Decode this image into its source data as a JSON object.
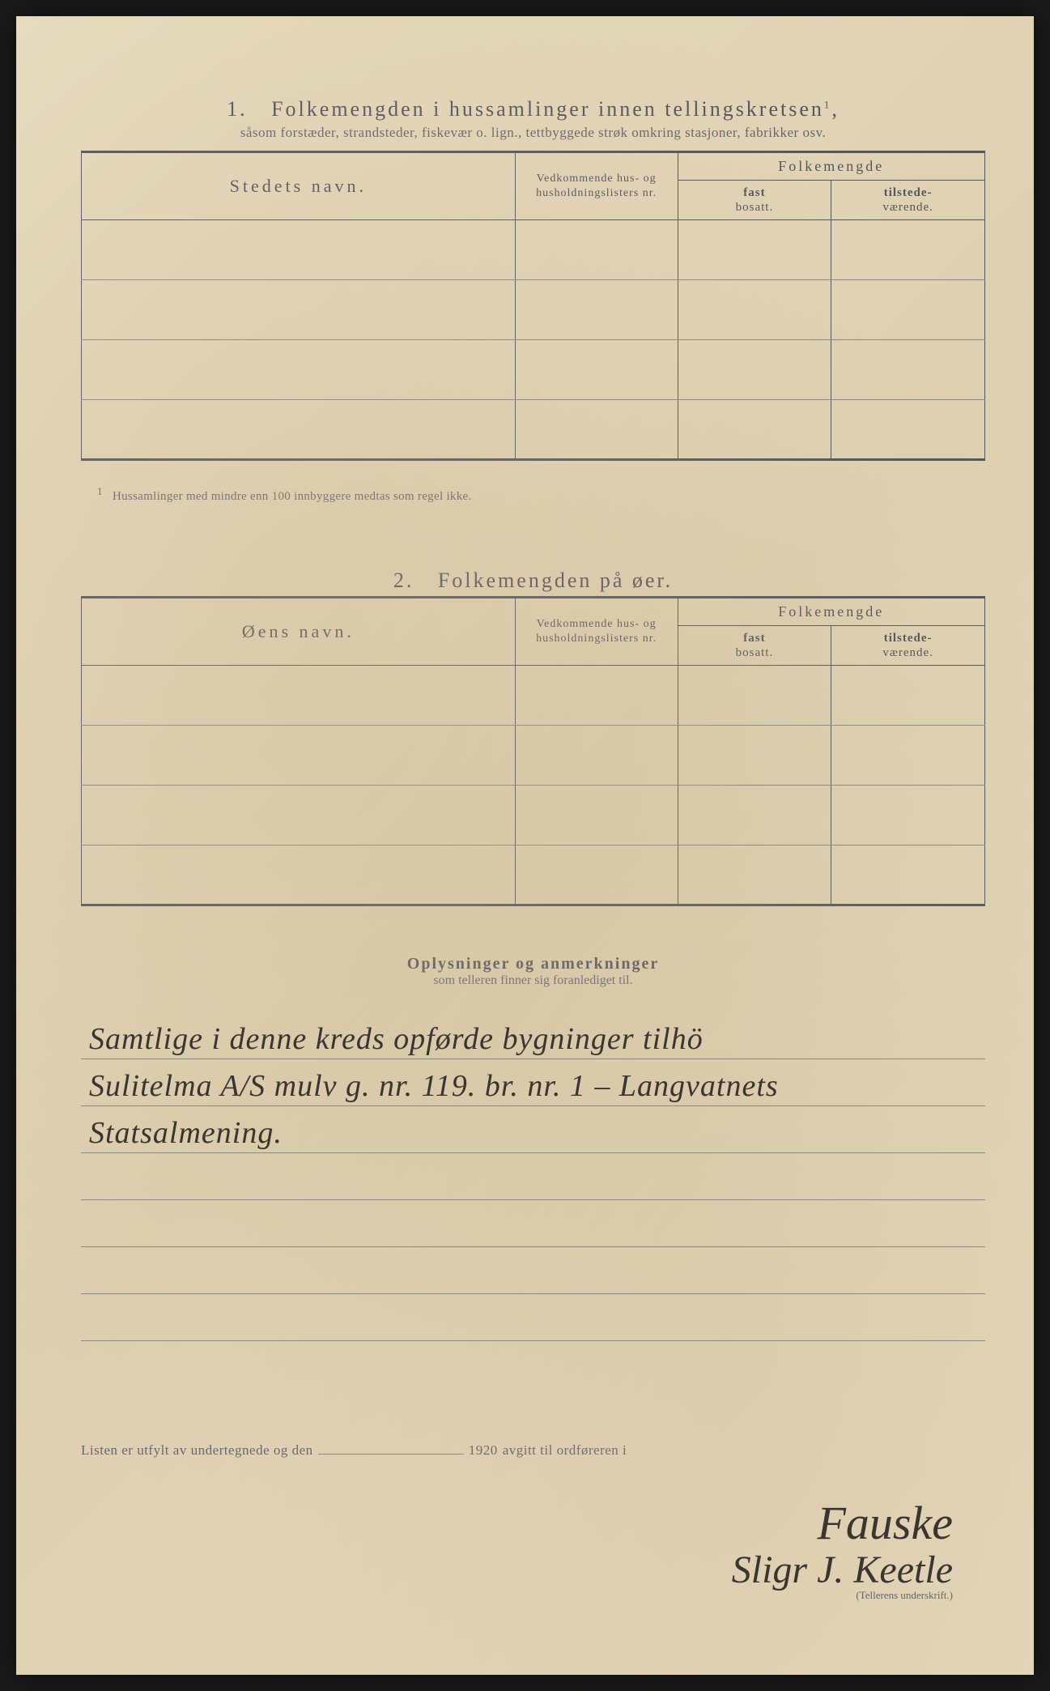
{
  "document": {
    "background_color": "#e2d6b8",
    "ink_color": "#555560",
    "handwriting_color": "#3a3530",
    "border_color": "#555560"
  },
  "section1": {
    "number": "1.",
    "title": "Folkemengden i hussamlinger innen tellingskretsen",
    "title_sup": "1",
    "subtitle": "såsom forstæder, strandsteder, fiskevær o. lign., tettbyggede strøk omkring stasjoner, fabrikker osv.",
    "col_name": "Stedets navn.",
    "col_ref": "Vedkommende hus- og husholdningslisters nr.",
    "col_folkemengde": "Folkemengde",
    "col_fast": "fast",
    "col_fast_sub": "bosatt.",
    "col_tilstede": "tilstede-",
    "col_tilstede_sub": "værende.",
    "rows": [
      {
        "name": "",
        "ref": "",
        "fast": "",
        "tilstede": ""
      },
      {
        "name": "",
        "ref": "",
        "fast": "",
        "tilstede": ""
      },
      {
        "name": "",
        "ref": "",
        "fast": "",
        "tilstede": ""
      },
      {
        "name": "",
        "ref": "",
        "fast": "",
        "tilstede": ""
      }
    ],
    "footnote_mark": "1",
    "footnote": "Hussamlinger med mindre enn 100 innbyggere medtas som regel ikke."
  },
  "section2": {
    "number": "2.",
    "title": "Folkemengden på øer.",
    "col_name": "Øens navn.",
    "col_ref": "Vedkommende hus- og husholdningslisters nr.",
    "col_folkemengde": "Folkemengde",
    "col_fast": "fast",
    "col_fast_sub": "bosatt.",
    "col_tilstede": "tilstede-",
    "col_tilstede_sub": "værende.",
    "rows": [
      {
        "name": "",
        "ref": "",
        "fast": "",
        "tilstede": ""
      },
      {
        "name": "",
        "ref": "",
        "fast": "",
        "tilstede": ""
      },
      {
        "name": "",
        "ref": "",
        "fast": "",
        "tilstede": ""
      },
      {
        "name": "",
        "ref": "",
        "fast": "",
        "tilstede": ""
      }
    ]
  },
  "section3": {
    "title": "Oplysninger og anmerkninger",
    "subtitle": "som telleren finner sig foranlediget til.",
    "lines": [
      "Samtlige i denne kreds opførde bygninger tilhö",
      "Sulitelma A/S mulv g. nr. 119. br. nr. 1 – Langvatnets",
      "Statsalmening.",
      "",
      "",
      "",
      ""
    ]
  },
  "footer": {
    "prefix": "Listen er utfylt av undertegnede og den",
    "year": "1920",
    "middle": "avgitt til ordføreren i",
    "place_handwritten": "Fauske",
    "signature": "Sligr J. Keetle",
    "signature_label": "(Tellerens underskrift.)"
  }
}
